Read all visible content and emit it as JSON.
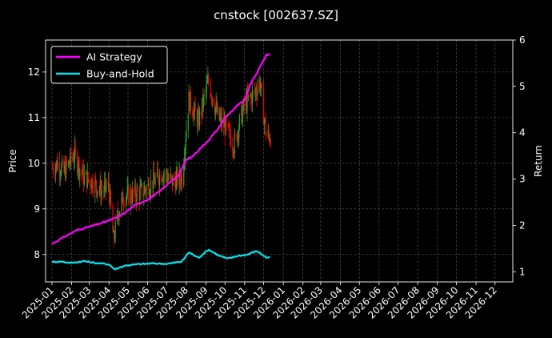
{
  "chart_data": {
    "type": "line",
    "title": "cnstock [002637.SZ]",
    "ylabel": "Price",
    "y2label": "Return",
    "ylim": [
      7.4,
      12.7
    ],
    "y2lim": [
      0.78,
      6.0
    ],
    "y_ticks": [
      8,
      9,
      10,
      11,
      12
    ],
    "y2_ticks": [
      1,
      2,
      3,
      4,
      5,
      6
    ],
    "x_ticks": [
      "2025-01",
      "2025-02",
      "2025-03",
      "2025-04",
      "2025-05",
      "2025-06",
      "2025-07",
      "2025-08",
      "2025-09",
      "2025-10",
      "2025-11",
      "2025-12",
      "2026-01",
      "2026-02",
      "2026-03",
      "2026-04",
      "2026-05",
      "2026-06",
      "2026-07",
      "2026-08",
      "2026-09",
      "2026-10",
      "2026-11",
      "2026-12"
    ],
    "grid": true,
    "legend_position": "top-left",
    "colors": {
      "up": "#2ca02c",
      "down": "#ff0000",
      "ai": "#ff00ff",
      "bh": "#00e5ee"
    },
    "price_waypoints": [
      [
        "2025-01-02",
        9.9
      ],
      [
        "2025-01-10",
        10.0
      ],
      [
        "2025-01-20",
        9.8
      ],
      [
        "2025-02-05",
        10.2
      ],
      [
        "2025-02-20",
        9.7
      ],
      [
        "2025-03-05",
        9.6
      ],
      [
        "2025-03-20",
        9.4
      ],
      [
        "2025-04-01",
        9.5
      ],
      [
        "2025-04-08",
        8.3
      ],
      [
        "2025-04-15",
        8.9
      ],
      [
        "2025-04-25",
        9.3
      ],
      [
        "2025-05-10",
        9.3
      ],
      [
        "2025-05-25",
        9.4
      ],
      [
        "2025-06-10",
        9.6
      ],
      [
        "2025-06-25",
        9.8
      ],
      [
        "2025-07-10",
        9.6
      ],
      [
        "2025-07-25",
        9.7
      ],
      [
        "2025-08-05",
        11.4
      ],
      [
        "2025-08-20",
        10.9
      ],
      [
        "2025-09-05",
        11.8
      ],
      [
        "2025-09-20",
        11.0
      ],
      [
        "2025-10-01",
        10.8
      ],
      [
        "2025-10-15",
        10.4
      ],
      [
        "2025-11-01",
        11.3
      ],
      [
        "2025-11-15",
        11.5
      ],
      [
        "2025-11-25",
        11.8
      ],
      [
        "2025-12-05",
        10.6
      ],
      [
        "2025-12-12",
        10.6
      ]
    ],
    "series": [
      {
        "name": "AI Strategy",
        "points": [
          [
            "2025-01-01",
            1.6
          ],
          [
            "2025-01-20",
            1.75
          ],
          [
            "2025-02-10",
            1.9
          ],
          [
            "2025-03-01",
            1.97
          ],
          [
            "2025-03-20",
            2.05
          ],
          [
            "2025-04-10",
            2.15
          ],
          [
            "2025-04-25",
            2.26
          ],
          [
            "2025-05-10",
            2.42
          ],
          [
            "2025-06-01",
            2.56
          ],
          [
            "2025-06-20",
            2.73
          ],
          [
            "2025-07-10",
            2.98
          ],
          [
            "2025-07-20",
            3.08
          ],
          [
            "2025-08-01",
            3.42
          ],
          [
            "2025-08-10",
            3.48
          ],
          [
            "2025-08-20",
            3.62
          ],
          [
            "2025-09-01",
            3.78
          ],
          [
            "2025-09-20",
            4.08
          ],
          [
            "2025-10-01",
            4.32
          ],
          [
            "2025-10-20",
            4.58
          ],
          [
            "2025-11-01",
            4.7
          ],
          [
            "2025-11-10",
            5.05
          ],
          [
            "2025-11-20",
            5.28
          ],
          [
            "2025-12-05",
            5.68
          ],
          [
            "2025-12-12",
            5.68
          ]
        ]
      },
      {
        "name": "Buy-and-Hold",
        "points": [
          [
            "2025-01-01",
            1.21
          ],
          [
            "2025-01-15",
            1.22
          ],
          [
            "2025-02-01",
            1.19
          ],
          [
            "2025-02-20",
            1.23
          ],
          [
            "2025-03-10",
            1.19
          ],
          [
            "2025-04-01",
            1.16
          ],
          [
            "2025-04-10",
            1.05
          ],
          [
            "2025-04-25",
            1.13
          ],
          [
            "2025-05-15",
            1.16
          ],
          [
            "2025-06-10",
            1.18
          ],
          [
            "2025-07-01",
            1.17
          ],
          [
            "2025-07-25",
            1.22
          ],
          [
            "2025-08-05",
            1.42
          ],
          [
            "2025-08-20",
            1.3
          ],
          [
            "2025-09-05",
            1.48
          ],
          [
            "2025-09-20",
            1.36
          ],
          [
            "2025-10-05",
            1.28
          ],
          [
            "2025-10-20",
            1.34
          ],
          [
            "2025-11-05",
            1.37
          ],
          [
            "2025-11-20",
            1.45
          ],
          [
            "2025-12-05",
            1.31
          ],
          [
            "2025-12-12",
            1.3
          ]
        ]
      }
    ]
  }
}
